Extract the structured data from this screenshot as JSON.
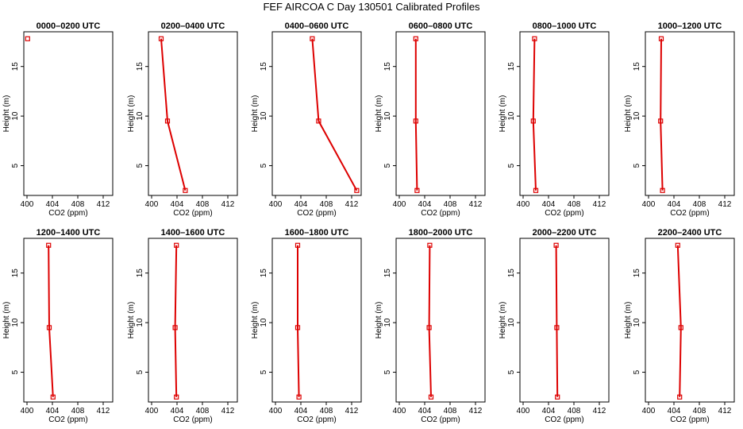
{
  "title": "FEF AIRCOA C  Day 130501  Calibrated Profiles",
  "colors": {
    "series": "#dd0000",
    "axis": "#000000",
    "background": "#ffffff"
  },
  "chart_data": [
    {
      "type": "line",
      "title": "0000–0200 UTC",
      "xlabel": "CO2 (ppm)",
      "ylabel": "Height (m)",
      "xlim": [
        399.5,
        413.5
      ],
      "ylim": [
        2,
        18.5
      ],
      "xticks": [
        400,
        404,
        408,
        412
      ],
      "yticks": [
        5,
        10,
        15
      ],
      "points": [
        {
          "x": 400.1,
          "y": 17.8
        }
      ]
    },
    {
      "type": "line",
      "title": "0200–0400 UTC",
      "xlabel": "CO2 (ppm)",
      "ylabel": "Height (m)",
      "xlim": [
        399.5,
        413.5
      ],
      "ylim": [
        2,
        18.5
      ],
      "xticks": [
        400,
        404,
        408,
        412
      ],
      "yticks": [
        5,
        10,
        15
      ],
      "points": [
        {
          "x": 401.5,
          "y": 17.8
        },
        {
          "x": 402.5,
          "y": 9.5
        },
        {
          "x": 405.3,
          "y": 2.5
        }
      ]
    },
    {
      "type": "line",
      "title": "0400–0600 UTC",
      "xlabel": "CO2 (ppm)",
      "ylabel": "Height (m)",
      "xlim": [
        399.5,
        413.5
      ],
      "ylim": [
        2,
        18.5
      ],
      "xticks": [
        400,
        404,
        408,
        412
      ],
      "yticks": [
        5,
        10,
        15
      ],
      "points": [
        {
          "x": 405.8,
          "y": 17.8
        },
        {
          "x": 406.8,
          "y": 9.5
        },
        {
          "x": 412.8,
          "y": 2.5
        }
      ]
    },
    {
      "type": "line",
      "title": "0600–0800 UTC",
      "xlabel": "CO2 (ppm)",
      "ylabel": "Height (m)",
      "xlim": [
        399.5,
        413.5
      ],
      "ylim": [
        2,
        18.5
      ],
      "xticks": [
        400,
        404,
        408,
        412
      ],
      "yticks": [
        5,
        10,
        15
      ],
      "points": [
        {
          "x": 402.6,
          "y": 17.8
        },
        {
          "x": 402.6,
          "y": 9.5
        },
        {
          "x": 402.8,
          "y": 2.5
        }
      ]
    },
    {
      "type": "line",
      "title": "0800–1000 UTC",
      "xlabel": "CO2 (ppm)",
      "ylabel": "Height (m)",
      "xlim": [
        399.5,
        413.5
      ],
      "ylim": [
        2,
        18.5
      ],
      "xticks": [
        400,
        404,
        408,
        412
      ],
      "yticks": [
        5,
        10,
        15
      ],
      "points": [
        {
          "x": 401.8,
          "y": 17.8
        },
        {
          "x": 401.6,
          "y": 9.5
        },
        {
          "x": 402.0,
          "y": 2.5
        }
      ]
    },
    {
      "type": "line",
      "title": "1000–1200 UTC",
      "xlabel": "CO2 (ppm)",
      "ylabel": "Height (m)",
      "xlim": [
        399.5,
        413.5
      ],
      "ylim": [
        2,
        18.5
      ],
      "xticks": [
        400,
        404,
        408,
        412
      ],
      "yticks": [
        5,
        10,
        15
      ],
      "points": [
        {
          "x": 402.0,
          "y": 17.8
        },
        {
          "x": 401.9,
          "y": 9.5
        },
        {
          "x": 402.2,
          "y": 2.5
        }
      ]
    },
    {
      "type": "line",
      "title": "1200–1400 UTC",
      "xlabel": "CO2 (ppm)",
      "ylabel": "Height (m)",
      "xlim": [
        399.5,
        413.5
      ],
      "ylim": [
        2,
        18.5
      ],
      "xticks": [
        400,
        404,
        408,
        412
      ],
      "yticks": [
        5,
        10,
        15
      ],
      "points": [
        {
          "x": 403.4,
          "y": 17.8
        },
        {
          "x": 403.5,
          "y": 9.5
        },
        {
          "x": 404.1,
          "y": 2.5
        }
      ]
    },
    {
      "type": "line",
      "title": "1400–1600 UTC",
      "xlabel": "CO2 (ppm)",
      "ylabel": "Height (m)",
      "xlim": [
        399.5,
        413.5
      ],
      "ylim": [
        2,
        18.5
      ],
      "xticks": [
        400,
        404,
        408,
        412
      ],
      "yticks": [
        5,
        10,
        15
      ],
      "points": [
        {
          "x": 403.9,
          "y": 17.8
        },
        {
          "x": 403.7,
          "y": 9.5
        },
        {
          "x": 403.9,
          "y": 2.5
        }
      ]
    },
    {
      "type": "line",
      "title": "1600–1800 UTC",
      "xlabel": "CO2 (ppm)",
      "ylabel": "Height (m)",
      "xlim": [
        399.5,
        413.5
      ],
      "ylim": [
        2,
        18.5
      ],
      "xticks": [
        400,
        404,
        408,
        412
      ],
      "yticks": [
        5,
        10,
        15
      ],
      "points": [
        {
          "x": 403.5,
          "y": 17.8
        },
        {
          "x": 403.5,
          "y": 9.5
        },
        {
          "x": 403.7,
          "y": 2.5
        }
      ]
    },
    {
      "type": "line",
      "title": "1800–2000 UTC",
      "xlabel": "CO2 (ppm)",
      "ylabel": "Height (m)",
      "xlim": [
        399.5,
        413.5
      ],
      "ylim": [
        2,
        18.5
      ],
      "xticks": [
        400,
        404,
        408,
        412
      ],
      "yticks": [
        5,
        10,
        15
      ],
      "points": [
        {
          "x": 404.8,
          "y": 17.8
        },
        {
          "x": 404.7,
          "y": 9.5
        },
        {
          "x": 405.0,
          "y": 2.5
        }
      ]
    },
    {
      "type": "line",
      "title": "2000–2200 UTC",
      "xlabel": "CO2 (ppm)",
      "ylabel": "Height (m)",
      "xlim": [
        399.5,
        413.5
      ],
      "ylim": [
        2,
        18.5
      ],
      "xticks": [
        400,
        404,
        408,
        412
      ],
      "yticks": [
        5,
        10,
        15
      ],
      "points": [
        {
          "x": 405.2,
          "y": 17.8
        },
        {
          "x": 405.3,
          "y": 9.5
        },
        {
          "x": 405.4,
          "y": 2.5
        }
      ]
    },
    {
      "type": "line",
      "title": "2200–2400 UTC",
      "xlabel": "CO2 (ppm)",
      "ylabel": "Height (m)",
      "xlim": [
        399.5,
        413.5
      ],
      "ylim": [
        2,
        18.5
      ],
      "xticks": [
        400,
        404,
        408,
        412
      ],
      "yticks": [
        5,
        10,
        15
      ],
      "points": [
        {
          "x": 404.6,
          "y": 17.8
        },
        {
          "x": 405.1,
          "y": 9.5
        },
        {
          "x": 404.9,
          "y": 2.5
        }
      ]
    }
  ]
}
